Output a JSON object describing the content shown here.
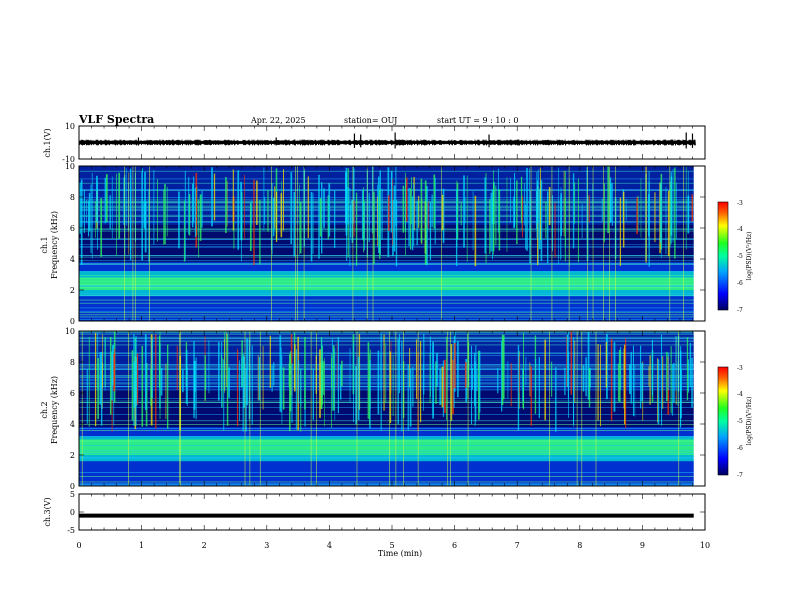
{
  "header": {
    "title": "VLF Spectra",
    "date": "Apr. 22, 2025",
    "station": "station= OUJ",
    "start": "start  UT =   9 : 10 : 0"
  },
  "chart_data": [
    {
      "type": "line",
      "title": "",
      "ylabel": "ch.1(V)",
      "ylim": [
        -10,
        10
      ],
      "yticks": [
        "10",
        "-10"
      ],
      "description_values": {
        "baseline": 0
      }
    },
    {
      "type": "heatmap",
      "ylabel": "ch.1",
      "ylabel2": "Frequency  (kHz)",
      "ylim": [
        0,
        10
      ],
      "yticks": [
        "0",
        "2",
        "4",
        "6",
        "8",
        "10"
      ],
      "colorbar": {
        "label": "log(PSD)(V²/Hz)",
        "range": [
          -7,
          -3
        ],
        "ticks": [
          "-3",
          "-4",
          "-5",
          "-6",
          "-7"
        ]
      }
    },
    {
      "type": "heatmap",
      "ylabel": "ch.2",
      "ylabel2": "Frequency  (kHz)",
      "ylim": [
        0,
        10
      ],
      "yticks": [
        "0",
        "2",
        "4",
        "6",
        "8",
        "10"
      ],
      "colorbar": {
        "label": "log(PSD)(V²/Hz)",
        "range": [
          -7,
          -3
        ],
        "ticks": [
          "-3",
          "-4",
          "-5",
          "-6",
          "-7"
        ]
      }
    },
    {
      "type": "line",
      "ylabel": "ch.3(V)",
      "ylim": [
        -5,
        5
      ],
      "yticks": [
        "5",
        "0",
        "-5"
      ],
      "values_constant": -1
    }
  ],
  "xaxis": {
    "label": "Time  (min)",
    "range": [
      0,
      10
    ],
    "ticks": [
      "0",
      "1",
      "2",
      "3",
      "4",
      "5",
      "6",
      "7",
      "8",
      "9",
      "10"
    ]
  },
  "colors": {
    "spec_low": "#000a6e",
    "spec_mid": "#00e0c0",
    "spec_high": "#ff1800"
  }
}
